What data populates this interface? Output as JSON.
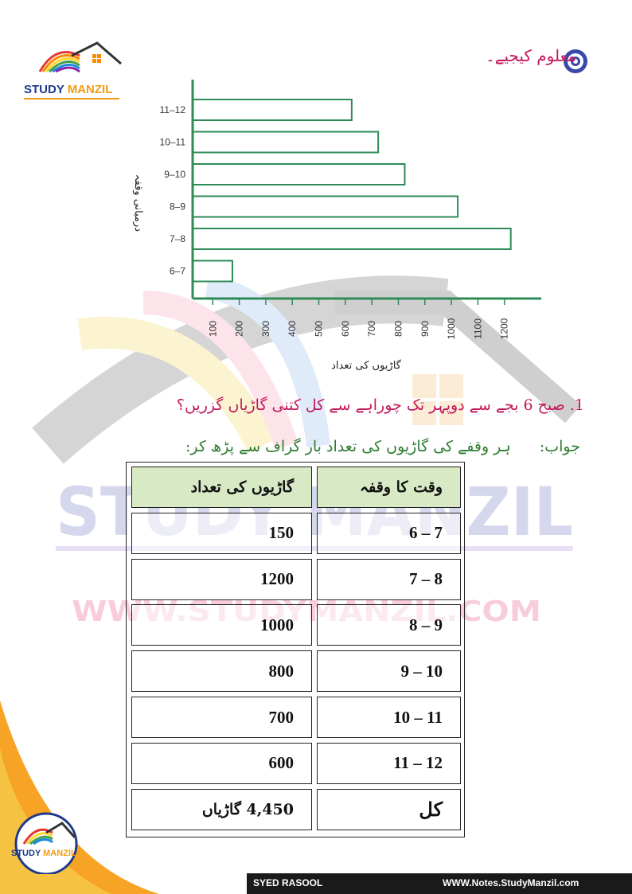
{
  "brand": {
    "logo_text_1": "STUDY ",
    "logo_text_2": "MANZIL"
  },
  "watermark": {
    "line1": "STUDY MANZIL",
    "line2": "WWW.STUDYMANZIL.COM"
  },
  "header": {
    "title": "معلوم کیجیے۔"
  },
  "chart_data": {
    "type": "bar",
    "orientation": "horizontal",
    "categories": [
      "6–7",
      "7–8",
      "8–9",
      "9–10",
      "10–11",
      "11–12"
    ],
    "values": [
      150,
      1200,
      1000,
      800,
      700,
      600
    ],
    "xlabel": "گاڑیوں کی تعداد",
    "ylabel": "درمیانی وقفہ",
    "xticks": [
      100,
      200,
      300,
      400,
      500,
      600,
      700,
      800,
      900,
      1000,
      1100,
      1200
    ],
    "xlim": [
      0,
      1300
    ],
    "grid": false,
    "bar_color": "#ffffff",
    "bar_stroke": "#2e8b57"
  },
  "question": {
    "number": "1.",
    "text": "صبح 6 بجے سے دوپہر تک چوراہے سے کل کتنی گاڑیاں گزریں؟"
  },
  "answer": {
    "label": "جواب:",
    "text": "ہر وقفے کی گاڑیوں کی تعداد بار گراف سے پڑھ کر:"
  },
  "table": {
    "headers": {
      "count": "گاڑیوں کی تعداد",
      "time": "وقت کا وقفہ"
    },
    "rows": [
      {
        "count": "150",
        "time": "6 – 7"
      },
      {
        "count": "1200",
        "time": "7 – 8"
      },
      {
        "count": "1000",
        "time": "8 – 9"
      },
      {
        "count": "800",
        "time": "9 – 10"
      },
      {
        "count": "700",
        "time": "10 – 11"
      },
      {
        "count": "600",
        "time": "11 – 12"
      }
    ],
    "total": {
      "count": "4,450 گاڑیاں",
      "label": "کل"
    }
  },
  "footer": {
    "author": "SYED RASOOL",
    "url": "WWW.Notes.StudyManzil.com"
  },
  "colors": {
    "accent": "#c2185b",
    "answer": "#2e7d32",
    "header_fill": "#d8e9c6",
    "bar_stroke": "#2e8b57"
  }
}
